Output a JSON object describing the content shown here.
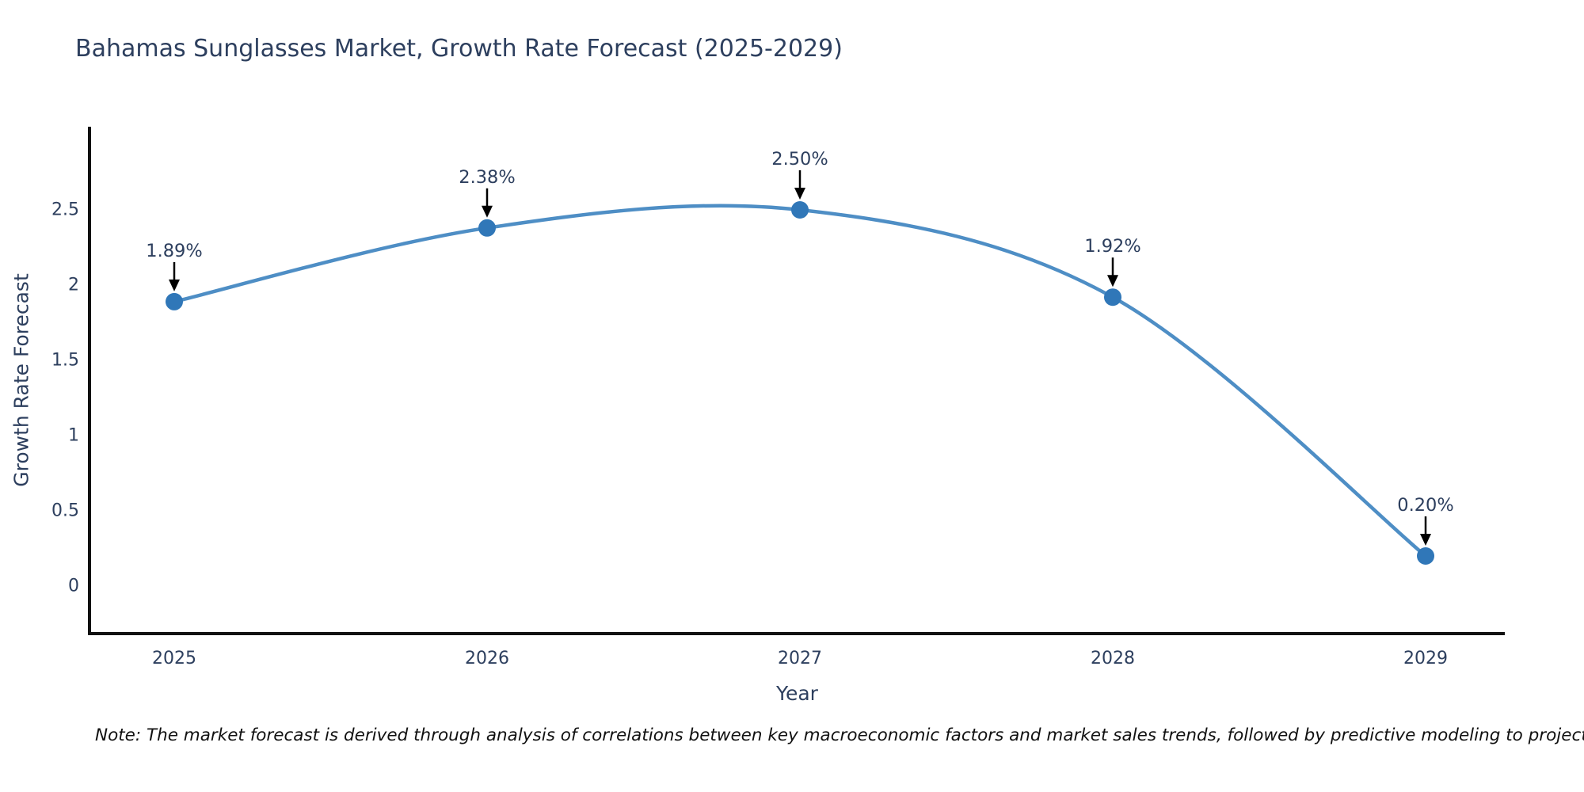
{
  "title": "Bahamas Sunglasses Market, Growth Rate Forecast (2025-2029)",
  "note": "Note: The market forecast is derived through analysis of correlations between key macroeconomic factors and market sales trends, followed by predictive modeling to project future sales",
  "chart_data": {
    "type": "line",
    "line_shape": "spline",
    "title": "Bahamas Sunglasses Market, Growth Rate Forecast (2025-2029)",
    "xlabel": "Year",
    "ylabel": "Growth Rate Forecast",
    "x": [
      2025,
      2026,
      2027,
      2028,
      2029
    ],
    "y": [
      1.89,
      2.38,
      2.5,
      1.92,
      0.2
    ],
    "point_labels": [
      "1.89%",
      "2.38%",
      "2.50%",
      "1.92%",
      "0.20%"
    ],
    "xtick_labels": [
      "2025",
      "2026",
      "2027",
      "2028",
      "2029"
    ],
    "ytick_values": [
      0,
      0.5,
      1,
      1.5,
      2,
      2.5
    ],
    "ytick_labels": [
      "0",
      "0.5",
      "1",
      "1.5",
      "2",
      "2.5"
    ],
    "ylim": [
      -0.32,
      3.05
    ],
    "grid": false,
    "legend": false,
    "annotations_have_arrows": true,
    "colors": {
      "line": "#4e8ec5",
      "marker": "#3077b8",
      "axis_line": "#111111",
      "font": "#2d3f5e",
      "annotation_text": "#2d3f5e",
      "annotation_arrow": "#000000",
      "note_text": "#111111",
      "background": "#ffffff"
    }
  }
}
